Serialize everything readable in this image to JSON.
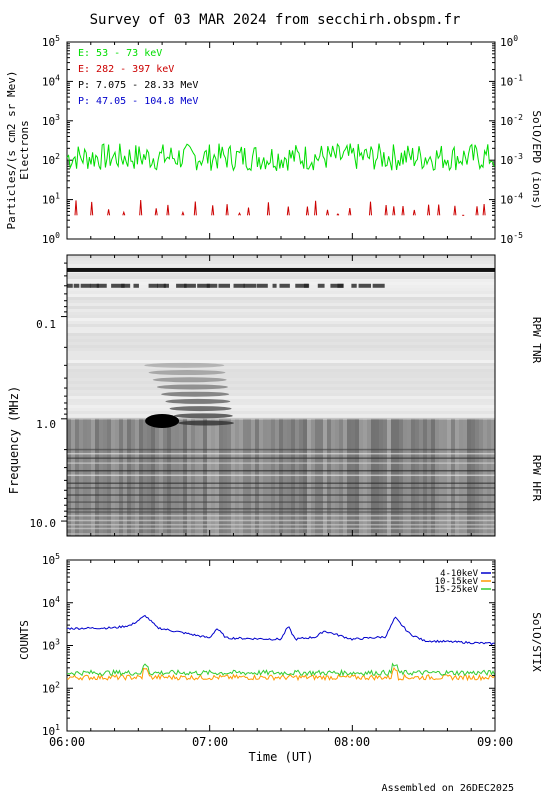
{
  "title": "Survey of 03 MAR 2024 from secchirh.obspm.fr",
  "footer": "Assembled on 26DEC2025",
  "colors": {
    "green": "#00dd00",
    "red": "#cc0000",
    "black": "#000000",
    "blue": "#0000cc",
    "orange": "#ff9900",
    "greenStix": "#33cc33"
  },
  "chart_data": [
    {
      "type": "line",
      "panel": "epd",
      "ylabel": "Particles/(s cm2 sr Mev)",
      "ylabel2": "Electrons",
      "right_label": "SolO/EPD (ions)",
      "yscale": "log",
      "ylim": [
        1,
        100000
      ],
      "yticks": [
        "10^0",
        "10^1",
        "10^2",
        "10^3",
        "10^4",
        "10^5"
      ],
      "y2lim": [
        1e-05,
        1
      ],
      "y2ticks": [
        "10^-5",
        "10^-4",
        "10^-3",
        "10^-2",
        "10^-1",
        "10^0"
      ],
      "xlim": [
        "06:00",
        "09:00"
      ],
      "legend": [
        "E: 53 - 73 keV",
        "E: 282 - 397 keV",
        "P: 7.075 - 28.33 MeV",
        "P: 47.05 - 104.8 MeV"
      ],
      "series": [
        {
          "name": "E: 53 - 73 keV",
          "baseline": 120,
          "spread": 0.35
        },
        {
          "name": "E: 282 - 397 keV",
          "peak_range": [
            4,
            10
          ],
          "style": "sporadic spikes"
        }
      ]
    },
    {
      "type": "heatmap",
      "panel": "rpw",
      "ylabel": "Frequency (MHz)",
      "right_label_top": "RPW TNR",
      "right_label_bottom": "RPW HFR",
      "yscale": "log",
      "ylim": [
        0.025,
        14
      ],
      "yticks": [
        "0.1",
        "1.0",
        "10.0"
      ],
      "xlim": [
        "06:00",
        "09:00"
      ],
      "features": [
        {
          "name": "dark band",
          "freq_mhz": 0.035,
          "time": [
            "06:00",
            "09:00"
          ]
        },
        {
          "name": "burst",
          "freq_mhz": [
            0.3,
            1.1
          ],
          "time": [
            "06:25",
            "06:50"
          ]
        }
      ]
    },
    {
      "type": "line",
      "panel": "stix",
      "ylabel": "COUNTS",
      "right_label": "SolO/STIX",
      "xlabel": "Time (UT)",
      "yscale": "log",
      "ylim": [
        10,
        100000
      ],
      "yticks": [
        "10^1",
        "10^2",
        "10^3",
        "10^4",
        "10^5"
      ],
      "x_ticks": [
        "06:00",
        "07:00",
        "08:00",
        "09:00"
      ],
      "xlim": [
        "06:00",
        "09:00"
      ],
      "legend": [
        "4-10keV",
        "10-15keV",
        "15-25keV"
      ],
      "series": [
        {
          "name": "4-10keV",
          "points": [
            [
              "06:00",
              2500
            ],
            [
              "06:20",
              2600
            ],
            [
              "06:27",
              3000
            ],
            [
              "06:33",
              5000
            ],
            [
              "06:38",
              2600
            ],
            [
              "06:55",
              1700
            ],
            [
              "07:00",
              1500
            ],
            [
              "07:03",
              2500
            ],
            [
              "07:07",
              1500
            ],
            [
              "07:30",
              1400
            ],
            [
              "07:33",
              2800
            ],
            [
              "07:36",
              1400
            ],
            [
              "07:45",
              1600
            ],
            [
              "07:48",
              2200
            ],
            [
              "08:00",
              1400
            ],
            [
              "08:14",
              1600
            ],
            [
              "08:18",
              4500
            ],
            [
              "08:24",
              1900
            ],
            [
              "08:30",
              1300
            ],
            [
              "09:00",
              1100
            ]
          ]
        },
        {
          "name": "10-15keV",
          "baseline": 180
        },
        {
          "name": "15-25keV",
          "baseline": 230
        }
      ]
    }
  ]
}
